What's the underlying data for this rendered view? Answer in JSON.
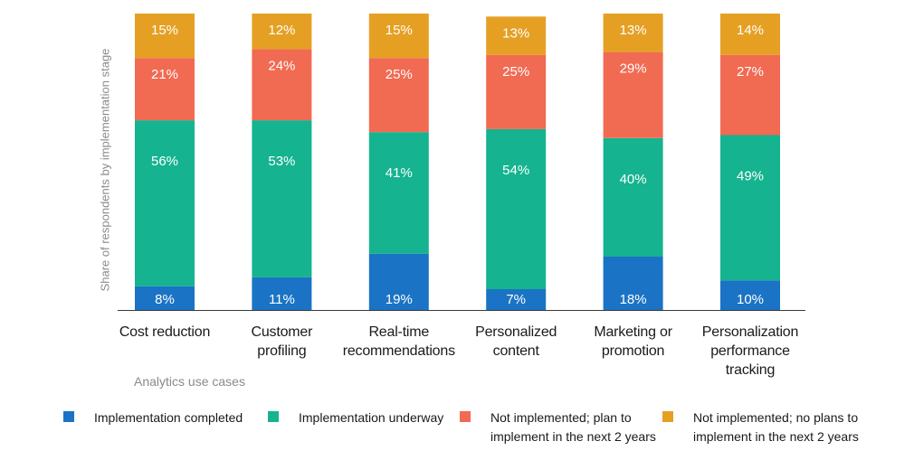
{
  "chart_data": {
    "type": "bar",
    "stacked": true,
    "ylabel": "Share of respondents by implementation stage",
    "xlabel": "Analytics use cases",
    "categories": [
      [
        "Cost reduction"
      ],
      [
        "Customer",
        "profiling"
      ],
      [
        "Real-time",
        "recommendations"
      ],
      [
        "Personalized",
        "content"
      ],
      [
        "Marketing or",
        "promotion"
      ],
      [
        "Personalization",
        "performance",
        "tracking"
      ]
    ],
    "series": [
      {
        "name": "Implementation completed",
        "color": "#1a73c4",
        "values": [
          8,
          11,
          19,
          7,
          18,
          10
        ]
      },
      {
        "name": "Implementation underway",
        "color": "#15b38f",
        "values": [
          56,
          53,
          41,
          54,
          40,
          49
        ]
      },
      {
        "name": "Not implemented; plan to implement in the next 2 years",
        "color": "#f16a52",
        "values": [
          21,
          24,
          25,
          25,
          29,
          27
        ]
      },
      {
        "name": "Not implemented; no plans to implement in the next 2 years",
        "color": "#e5a024",
        "values": [
          15,
          12,
          15,
          13,
          13,
          14
        ]
      }
    ],
    "value_suffix": "%",
    "legend_position": "bottom",
    "grid": false,
    "ylim": [
      0,
      100
    ]
  },
  "legend": [
    {
      "lines": [
        "Implementation completed"
      ]
    },
    {
      "lines": [
        "Implementation underway"
      ]
    },
    {
      "lines": [
        "Not implemented; plan to",
        "implement in the next 2 years"
      ]
    },
    {
      "lines": [
        "Not implemented; no plans to",
        "implement in the next 2 years"
      ]
    }
  ]
}
